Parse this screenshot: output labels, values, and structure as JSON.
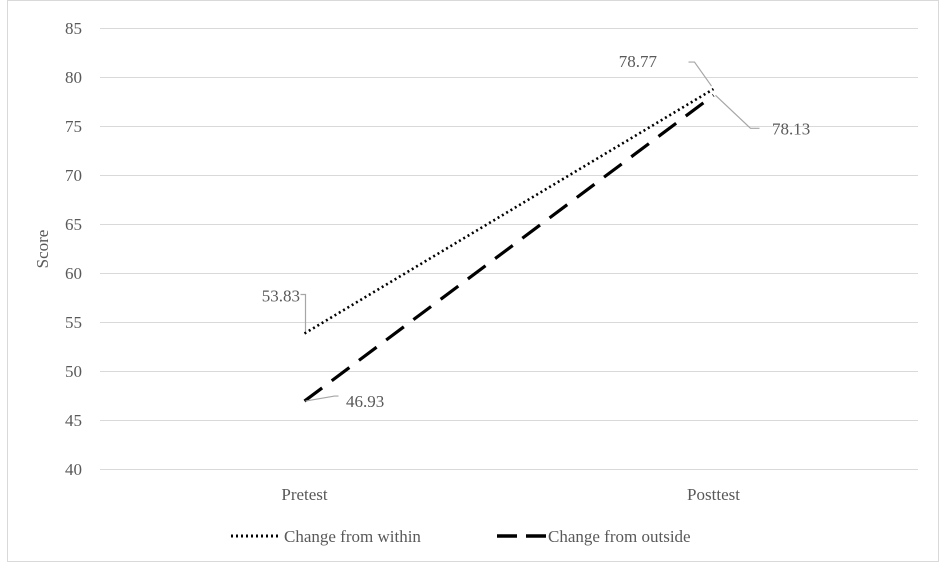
{
  "chart_data": {
    "type": "line",
    "categories": [
      "Pretest",
      "Posttest"
    ],
    "ylabel": "Score",
    "xlabel": "",
    "ylim": [
      40,
      85
    ],
    "yticks": [
      40,
      45,
      50,
      55,
      60,
      65,
      70,
      75,
      80,
      85
    ],
    "grid": true,
    "legend_position": "bottom",
    "series": [
      {
        "name": "Change from within",
        "values": [
          53.83,
          78.77
        ],
        "labels": [
          "53.83",
          "78.77"
        ],
        "line_style": "dotted",
        "color": "#000000"
      },
      {
        "name": "Change from outside",
        "values": [
          46.93,
          78.13
        ],
        "labels": [
          "46.93",
          "78.13"
        ],
        "line_style": "dashed",
        "color": "#000000"
      }
    ]
  },
  "colors": {
    "grid": "#d9d9d9",
    "text": "#595959",
    "leader": "#a6a6a6",
    "border": "#d9d9d9"
  }
}
